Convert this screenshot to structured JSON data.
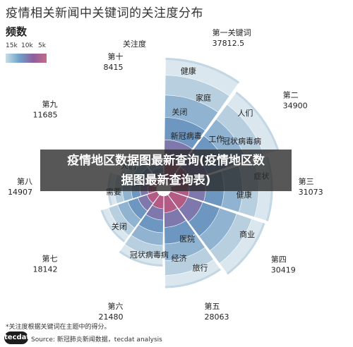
{
  "title": "疫情相关新闻中关键词的关注度分布",
  "legend": {
    "title": "频数",
    "ticks": [
      "15k",
      "10k",
      "5k"
    ],
    "colors": [
      "#c7dde6",
      "#6ea2c8",
      "#8d5fa0",
      "#c46a86"
    ]
  },
  "banner": {
    "line1": "疫情地区数据图最新查询(疫情地区数",
    "line2": "据图最新查询表)"
  },
  "footnote": "*关注度根据关键词在主题中的得分。",
  "logo_text": "tecdat",
  "source": "Source: 新冠肺炎新闻数据，tecdat analysis",
  "chart_data": {
    "type": "radial_bar",
    "title": "疫情相关新闻中关键词的关注度分布",
    "label_header": "关注度",
    "categories": [
      "第一关键词",
      "第二",
      "第三",
      "第四",
      "第五",
      "第六",
      "第七",
      "第八",
      "第九",
      "第十"
    ],
    "values": [
      37812.5,
      34900,
      31073,
      30419,
      28063,
      21480,
      18142,
      14907,
      11685,
      8415
    ],
    "keywords": [
      [
        "健康",
        "家庭",
        "关闭",
        "新冠病毒"
      ],
      [
        "人们",
        "冠状病毒病",
        "工作",
        "测试"
      ],
      [
        "症状",
        "健康"
      ],
      [
        "商业"
      ],
      [
        "旅行",
        "经济",
        "医院"
      ],
      [
        "冠状病毒病"
      ],
      [
        "关闭"
      ],
      [
        "需要"
      ],
      [
        "人们"
      ],
      []
    ]
  }
}
